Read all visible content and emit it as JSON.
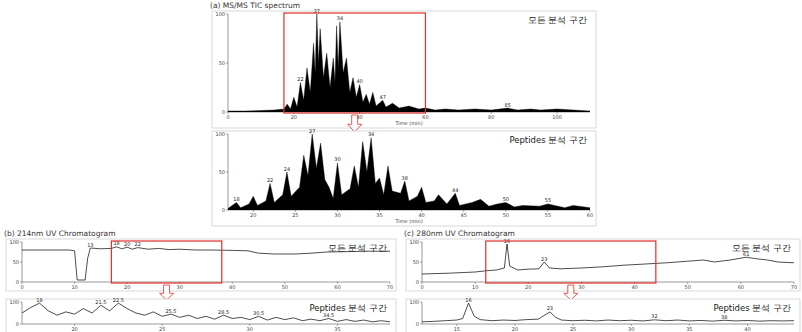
{
  "chart_data": [
    {
      "type": "area",
      "title": "(a) MS/MS TIC spectrum",
      "subtitle": "모든 분석 구간",
      "xlabel": "Time (min)",
      "x": [
        0,
        5,
        10,
        14,
        17,
        18,
        19,
        20,
        21,
        22,
        23,
        24,
        25,
        26,
        26.5,
        27,
        27.5,
        28,
        29,
        30,
        31,
        32,
        32.5,
        33,
        33.5,
        34,
        35,
        36,
        37,
        38,
        39,
        40,
        41,
        42,
        43,
        44,
        45,
        47,
        48,
        50,
        52,
        55,
        58,
        60,
        63,
        66,
        70,
        75,
        80,
        85,
        88,
        92,
        95,
        100,
        105,
        110
      ],
      "values": [
        1,
        1,
        1.5,
        2,
        3,
        8,
        3,
        15,
        5,
        30,
        12,
        45,
        20,
        70,
        40,
        100,
        50,
        85,
        35,
        60,
        25,
        55,
        30,
        88,
        45,
        92,
        40,
        55,
        20,
        35,
        15,
        28,
        10,
        18,
        8,
        20,
        6,
        12,
        5,
        9,
        4,
        6,
        3,
        4,
        2,
        3,
        2,
        3,
        2,
        4,
        2,
        3,
        2,
        3,
        2,
        1
      ],
      "xlim": [
        0,
        110
      ],
      "ylim": [
        0,
        100
      ],
      "xticks": [
        0,
        20,
        40,
        60,
        80,
        100
      ],
      "yticks": [
        0,
        50,
        100
      ],
      "color": "#000000",
      "highlight_range": [
        17,
        60
      ],
      "peaks": [
        22,
        27,
        34,
        40,
        47,
        85
      ]
    },
    {
      "type": "area",
      "subtitle": "Peptides 분석 구간",
      "xlabel": "Time (min)",
      "x": [
        17,
        18,
        18.5,
        19.5,
        20,
        20.5,
        21.5,
        22,
        22.5,
        23.5,
        24,
        24.5,
        25.5,
        26,
        26.5,
        27,
        27.5,
        28,
        28.5,
        29,
        29.5,
        30,
        30.5,
        31.5,
        32,
        32.5,
        33,
        33.5,
        34,
        34.5,
        35,
        35.5,
        36,
        36.5,
        37.5,
        38,
        38.5,
        39.5,
        40,
        40.5,
        41.5,
        42,
        43,
        44,
        44.5,
        46,
        47,
        48,
        49,
        50,
        51,
        52,
        54,
        55,
        57,
        58,
        60
      ],
      "values": [
        2,
        10,
        3,
        8,
        18,
        6,
        12,
        35,
        10,
        20,
        50,
        18,
        30,
        72,
        45,
        100,
        55,
        88,
        40,
        30,
        15,
        62,
        20,
        28,
        58,
        30,
        90,
        50,
        95,
        35,
        42,
        20,
        58,
        25,
        22,
        38,
        12,
        18,
        30,
        10,
        12,
        20,
        8,
        22,
        6,
        10,
        14,
        5,
        8,
        10,
        4,
        6,
        5,
        8,
        3,
        6,
        3
      ],
      "xlim": [
        17,
        60
      ],
      "ylim": [
        0,
        100
      ],
      "xticks": [
        20,
        25,
        30,
        35,
        40,
        45,
        50,
        55,
        60
      ],
      "yticks": [
        0,
        50,
        100
      ],
      "color": "#000000",
      "peaks": [
        18,
        22,
        24,
        27,
        30,
        34,
        38,
        44,
        50,
        55
      ]
    },
    {
      "type": "line",
      "title": "(b) 214nm UV Chromatogram",
      "subtitle": "모든 분석 구간",
      "x": [
        0,
        5,
        9,
        10,
        10.5,
        12,
        12.5,
        13,
        15,
        17,
        18,
        19,
        20,
        21,
        22,
        24,
        26,
        28,
        30,
        33,
        36,
        40,
        43,
        45,
        48,
        52,
        55,
        58,
        62,
        66,
        70
      ],
      "values": [
        80,
        80,
        80,
        78,
        5,
        5,
        60,
        85,
        83,
        84,
        88,
        83,
        87,
        82,
        86,
        82,
        84,
        81,
        82,
        80,
        80,
        79,
        78,
        72,
        70,
        70,
        72,
        75,
        76,
        77,
        77
      ],
      "xlim": [
        0,
        70
      ],
      "ylim": [
        0,
        100
      ],
      "xticks": [
        0,
        10,
        20,
        30,
        40,
        50,
        60,
        70
      ],
      "yticks": [
        0,
        50,
        100
      ],
      "color": "#000000",
      "highlight_range": [
        17,
        38
      ],
      "peaks": [
        13,
        18,
        20,
        22
      ]
    },
    {
      "type": "line",
      "subtitle": "Peptides 분석 구간",
      "x": [
        17,
        17.5,
        18,
        18.5,
        19,
        19.5,
        20,
        20.5,
        21,
        21.5,
        22,
        22.5,
        23,
        23.5,
        24,
        24.5,
        25,
        25.5,
        26,
        26.5,
        27,
        27.5,
        28,
        28.5,
        29,
        29.5,
        30,
        30.5,
        31,
        31.5,
        32,
        32.5,
        33,
        33.5,
        34,
        34.5,
        35,
        35.5,
        36,
        36.5,
        37,
        37.5,
        38
      ],
      "values": [
        50,
        75,
        95,
        60,
        40,
        55,
        45,
        70,
        50,
        85,
        60,
        95,
        70,
        50,
        40,
        55,
        35,
        45,
        30,
        40,
        25,
        35,
        22,
        40,
        25,
        30,
        20,
        35,
        18,
        30,
        20,
        28,
        15,
        22,
        15,
        25,
        12,
        20,
        12,
        18,
        10,
        15,
        10
      ],
      "xlim": [
        17,
        38
      ],
      "ylim": [
        0,
        100
      ],
      "xticks": [
        20,
        25,
        30,
        35
      ],
      "yticks": [
        0,
        100
      ],
      "color": "#000000",
      "peaks": [
        18,
        21.5,
        22.5,
        25.5,
        28.5,
        30.5,
        34.5
      ]
    },
    {
      "type": "line",
      "title": "(c) 280nm UV Chromatogram",
      "subtitle": "모든 분석 구간",
      "x": [
        0,
        5,
        10,
        12,
        14,
        15.5,
        16,
        16.5,
        18,
        20,
        22,
        23,
        24,
        26,
        30,
        34,
        38,
        42,
        46,
        50,
        53,
        55,
        58,
        61,
        63,
        65,
        67,
        70
      ],
      "values": [
        20,
        22,
        25,
        28,
        30,
        35,
        95,
        40,
        30,
        32,
        33,
        50,
        35,
        33,
        35,
        38,
        42,
        45,
        48,
        52,
        55,
        50,
        55,
        62,
        58,
        55,
        50,
        48
      ],
      "xlim": [
        0,
        70
      ],
      "ylim": [
        0,
        100
      ],
      "xticks": [
        0,
        10,
        20,
        30,
        40,
        50,
        60,
        70
      ],
      "yticks": [
        0,
        50,
        100
      ],
      "color": "#000000",
      "highlight_range": [
        12,
        44
      ],
      "peaks": [
        16,
        23,
        61
      ]
    },
    {
      "type": "line",
      "subtitle": "Peptides 분석 구간",
      "x": [
        12,
        13,
        14,
        15,
        15.5,
        16,
        16.5,
        17,
        18,
        19,
        20,
        21,
        22,
        23,
        23.5,
        24,
        25,
        26,
        27,
        28,
        29,
        30,
        31,
        32,
        33,
        34,
        35,
        36,
        37,
        38,
        39,
        40,
        41,
        42,
        43,
        44
      ],
      "values": [
        10,
        12,
        15,
        18,
        25,
        95,
        35,
        20,
        15,
        18,
        16,
        20,
        22,
        55,
        30,
        18,
        15,
        17,
        14,
        18,
        15,
        17,
        14,
        19,
        15,
        18,
        14,
        16,
        13,
        17,
        14,
        16,
        13,
        15,
        14,
        15
      ],
      "xlim": [
        12,
        44
      ],
      "ylim": [
        0,
        100
      ],
      "xticks": [
        15,
        20,
        25,
        30,
        35,
        40
      ],
      "yticks": [
        0,
        100
      ],
      "color": "#000000",
      "peaks": [
        16,
        23,
        32,
        38
      ]
    }
  ]
}
